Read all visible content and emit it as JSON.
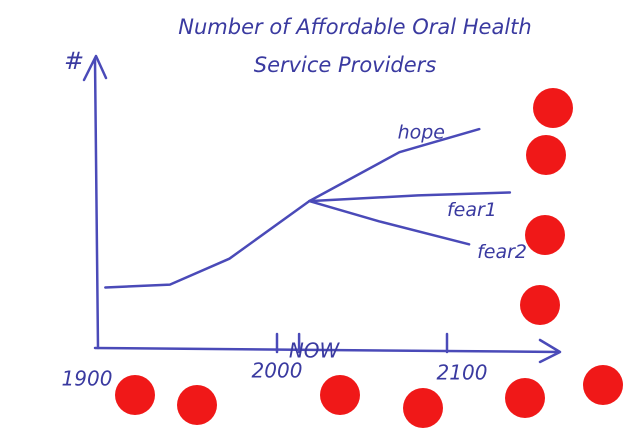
{
  "chart_data": {
    "type": "line",
    "title": "Number of Affordable Oral Health",
    "subtitle": "Service Providers",
    "y_label": "#",
    "xlim": [
      1890,
      2150
    ],
    "ylim": [
      0,
      100
    ],
    "xticks": [
      1900,
      2000,
      {
        "value": 2013,
        "label": "NOW"
      },
      2100
    ],
    "color": "#4a4ab8",
    "series": [
      {
        "x": [
          1899,
          1937,
          1972,
          2019
        ],
        "values": [
          21,
          22,
          31,
          51
        ]
      },
      {
        "name": "hope",
        "x": [
          2019,
          2072,
          2119
        ],
        "values": [
          51,
          68,
          76
        ]
      },
      {
        "name": "fear1",
        "x": [
          2019,
          2083,
          2137
        ],
        "values": [
          51,
          53,
          54
        ]
      },
      {
        "name": "fear2",
        "x": [
          2019,
          2060,
          2113
        ],
        "values": [
          51,
          44,
          36
        ]
      }
    ]
  }
}
